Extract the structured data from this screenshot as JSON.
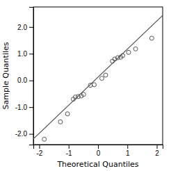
{
  "chart_data": {
    "type": "scatter",
    "xlabel": "Theoretical Quantiles",
    "ylabel": "Sample Quantiles",
    "xlim": [
      -2.2,
      2.2
    ],
    "ylim": [
      -2.4,
      2.75
    ],
    "xticks": [
      -2,
      -1,
      0,
      1,
      2
    ],
    "yticks": [
      {
        "value": -2.0,
        "label": "-2.0"
      },
      {
        "value": -1.0,
        "label": "-1.0"
      },
      {
        "value": 0.0,
        "label": "0.0"
      },
      {
        "value": 1.0,
        "label": "1.0"
      },
      {
        "value": 2.0,
        "label": "2.0"
      }
    ],
    "series": [
      {
        "type": "line",
        "color": "#555555",
        "line_style": "solid",
        "x": [
          -2.2,
          2.2
        ],
        "values": [
          -2.185791366906475,
          2.435791366906475
        ]
      },
      {
        "type": "scatter",
        "color": "#555555",
        "marker": "open-circle",
        "x": [
          -1.83,
          -1.28,
          -1.04,
          -0.84,
          -0.77,
          -0.67,
          -0.57,
          -0.49,
          -0.26,
          -0.13,
          0.13,
          0.26,
          0.49,
          0.57,
          0.67,
          0.77,
          0.84,
          1.04,
          1.28,
          1.83
        ],
        "values": [
          -2.2,
          -1.55,
          -1.25,
          -0.7,
          -0.62,
          -0.6,
          -0.58,
          -0.52,
          -0.18,
          -0.16,
          0.08,
          0.2,
          0.72,
          0.8,
          0.85,
          0.87,
          0.93,
          1.05,
          1.18,
          1.58
        ]
      }
    ]
  }
}
